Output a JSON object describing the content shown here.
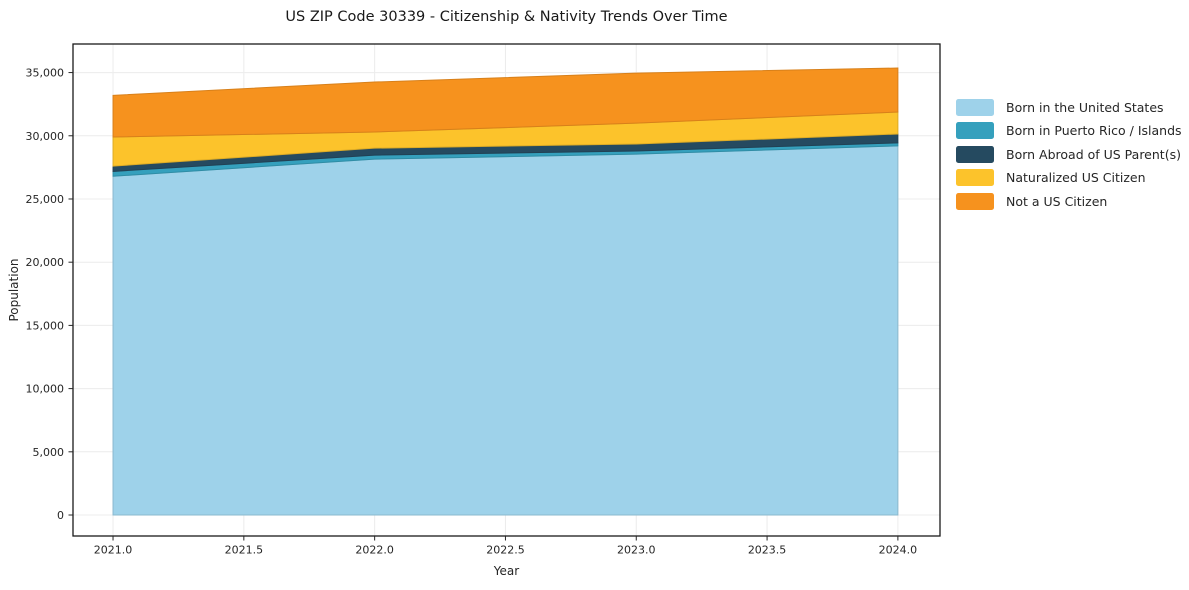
{
  "chart_data": {
    "type": "area",
    "stacked": true,
    "title": "US ZIP Code 30339 - Citizenship & Nativity Trends Over Time",
    "xlabel": "Year",
    "ylabel": "Population",
    "x": [
      2021,
      2022,
      2023,
      2024
    ],
    "series": [
      {
        "name": "Born in the United States",
        "color": "#9ed2ea",
        "values": [
          26800,
          28150,
          28550,
          29200
        ]
      },
      {
        "name": "Born in Puerto Rico / Islands",
        "color": "#35a0bd",
        "values": [
          380,
          320,
          250,
          240
        ]
      },
      {
        "name": "Born Abroad of US Parent(s)",
        "color": "#254a60",
        "values": [
          420,
          550,
          550,
          700
        ]
      },
      {
        "name": "Naturalized US Citizen",
        "color": "#fcc32b",
        "values": [
          2300,
          1280,
          1650,
          1740
        ]
      },
      {
        "name": "Not a US Citizen",
        "color": "#f6921e",
        "values": [
          3300,
          3950,
          3960,
          3480
        ]
      }
    ],
    "stack_totals": [
      33200,
      34250,
      34960,
      35360
    ],
    "x_ticks": [
      "2021.0",
      "2021.5",
      "2022.0",
      "2022.5",
      "2023.0",
      "2023.5",
      "2024.0"
    ],
    "x_tick_values": [
      2021,
      2021.5,
      2022,
      2022.5,
      2023,
      2023.5,
      2024
    ],
    "y_ticks": [
      "0",
      "5,000",
      "10,000",
      "15,000",
      "20,000",
      "25,000",
      "30,000",
      "35,000"
    ],
    "y_tick_values": [
      0,
      5000,
      10000,
      15000,
      20000,
      25000,
      30000,
      35000
    ],
    "xlim": [
      2020.847,
      2024.161
    ],
    "ylim": [
      -1660,
      37260
    ],
    "grid": true,
    "grid_color": "#ececec",
    "frame_color": "#1a1a1a",
    "tick_color": "#262626",
    "background": "#ffffff",
    "legend_position": "right of plot, no border"
  }
}
